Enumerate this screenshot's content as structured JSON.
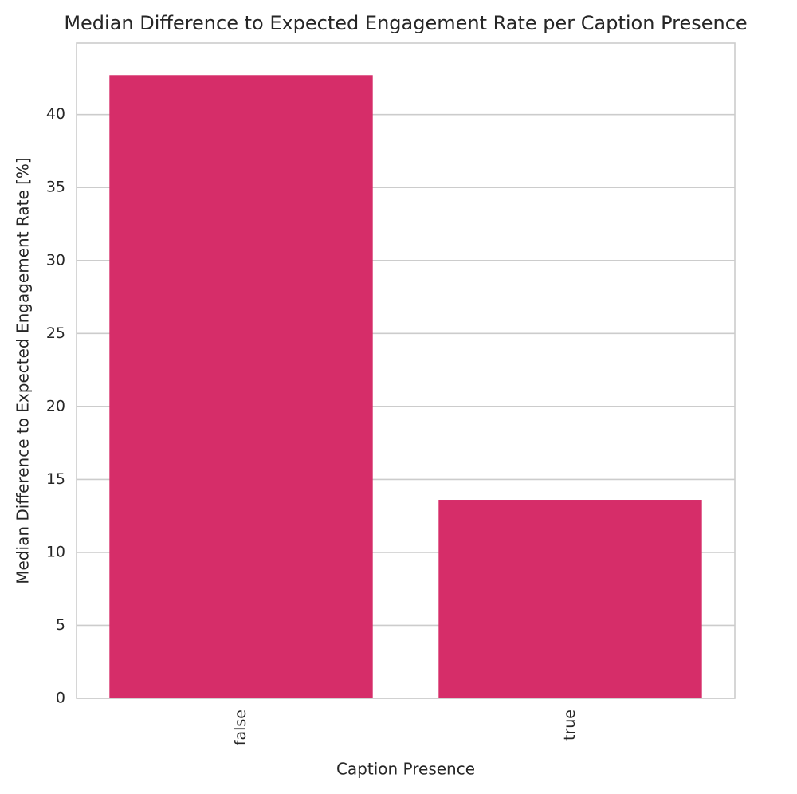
{
  "chart_data": {
    "type": "bar",
    "title": "Median Difference to Expected Engagement Rate per Caption Presence",
    "x_label": "Caption Presence",
    "y_label": "Median Difference to Expected Engagement Rate [%]",
    "categories": [
      "false",
      "true"
    ],
    "values": [
      42.7,
      13.6
    ],
    "color": "#d62d69",
    "ylim": [
      0,
      44.9
    ],
    "yticks": [
      0,
      5,
      10,
      15,
      20,
      25,
      30,
      35,
      40
    ],
    "grid": true
  }
}
